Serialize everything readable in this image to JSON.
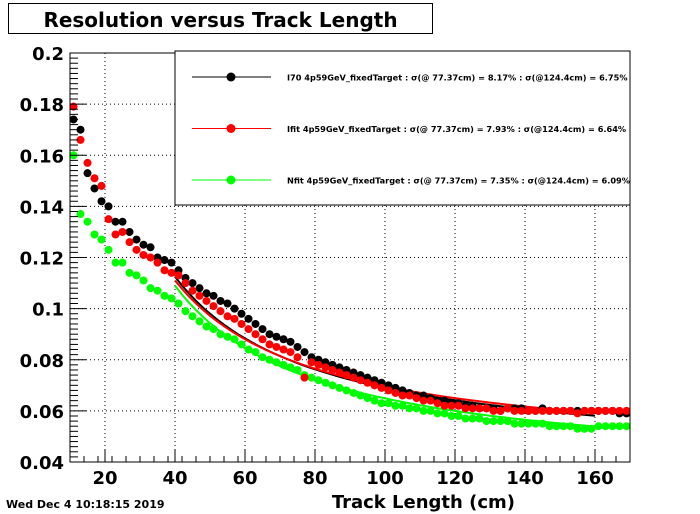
{
  "window_title": "Resolution versus Track Length",
  "datestamp": "Wed Dec  4 10:18:15 2019",
  "chart_data": {
    "type": "scatter",
    "title": "Resolution versus Track Length",
    "xlabel": "Track Length (cm)",
    "ylabel": "",
    "xlim": [
      10,
      170
    ],
    "ylim": [
      0.04,
      0.2
    ],
    "x_ticks": [
      "20",
      "40",
      "60",
      "80",
      "100",
      "120",
      "140",
      "160"
    ],
    "y_ticks": [
      "0.04",
      "0.06",
      "0.08",
      "0.1",
      "0.12",
      "0.14",
      "0.16",
      "0.18",
      "0.2"
    ],
    "grid": true,
    "legend_position": "top-right",
    "series": [
      {
        "name": "I70  4p59GeV_fixedTarget : σ(@ 77.37cm) =  8.17% : σ(@124.4cm) =  6.75%",
        "color": "#000000",
        "x": [
          11,
          13,
          15,
          17,
          19,
          21,
          23,
          25,
          27,
          29,
          31,
          33,
          35,
          37,
          39,
          41,
          43,
          45,
          47,
          49,
          51,
          53,
          55,
          57,
          59,
          61,
          63,
          65,
          67,
          69,
          71,
          73,
          75,
          77,
          79,
          81,
          83,
          85,
          87,
          89,
          91,
          93,
          95,
          97,
          99,
          101,
          103,
          105,
          107,
          109,
          111,
          113,
          115,
          117,
          119,
          121,
          123,
          125,
          127,
          129,
          131,
          133,
          135,
          137,
          139,
          141,
          143,
          145,
          147,
          149,
          151,
          153,
          155,
          157,
          159,
          161,
          163,
          165,
          167,
          169
        ],
        "y": [
          0.174,
          0.17,
          0.153,
          0.147,
          0.142,
          0.14,
          0.134,
          0.134,
          0.13,
          0.127,
          0.125,
          0.124,
          0.12,
          0.119,
          0.118,
          0.115,
          0.112,
          0.11,
          0.108,
          0.106,
          0.105,
          0.103,
          0.102,
          0.1,
          0.098,
          0.096,
          0.094,
          0.092,
          0.09,
          0.089,
          0.088,
          0.087,
          0.085,
          0.083,
          0.081,
          0.08,
          0.079,
          0.078,
          0.077,
          0.076,
          0.075,
          0.074,
          0.073,
          0.072,
          0.071,
          0.07,
          0.069,
          0.068,
          0.067,
          0.066,
          0.066,
          0.065,
          0.064,
          0.064,
          0.063,
          0.063,
          0.062,
          0.062,
          0.061,
          0.061,
          0.061,
          0.06,
          0.061,
          0.061,
          0.061,
          0.06,
          0.06,
          0.061,
          0.06,
          0.06,
          0.06,
          0.06,
          0.06,
          0.06,
          0.06,
          0.06,
          0.06,
          0.06,
          0.059,
          0.059
        ]
      },
      {
        "name": "Ifit 4p59GeV_fixedTarget : σ(@ 77.37cm) =  7.93% : σ(@124.4cm) =  6.64%",
        "color": "#ff0000",
        "x": [
          11,
          13,
          15,
          17,
          19,
          21,
          23,
          25,
          27,
          29,
          31,
          33,
          35,
          37,
          39,
          41,
          43,
          45,
          47,
          49,
          51,
          53,
          55,
          57,
          59,
          61,
          63,
          65,
          67,
          69,
          71,
          73,
          75,
          77,
          79,
          81,
          83,
          85,
          87,
          89,
          91,
          93,
          95,
          97,
          99,
          101,
          103,
          105,
          107,
          109,
          111,
          113,
          115,
          117,
          119,
          121,
          123,
          125,
          127,
          129,
          131,
          133,
          135,
          137,
          139,
          141,
          143,
          145,
          147,
          149,
          151,
          153,
          155,
          157,
          159,
          161,
          163,
          165,
          167,
          169
        ],
        "y": [
          0.179,
          0.166,
          0.157,
          0.151,
          0.148,
          0.135,
          0.129,
          0.13,
          0.126,
          0.123,
          0.121,
          0.12,
          0.118,
          0.115,
          0.114,
          0.113,
          0.11,
          0.107,
          0.105,
          0.103,
          0.101,
          0.099,
          0.097,
          0.096,
          0.094,
          0.092,
          0.09,
          0.088,
          0.086,
          0.085,
          0.084,
          0.083,
          0.081,
          0.073,
          0.079,
          0.078,
          0.077,
          0.076,
          0.075,
          0.074,
          0.073,
          0.072,
          0.071,
          0.07,
          0.069,
          0.068,
          0.067,
          0.066,
          0.066,
          0.065,
          0.064,
          0.064,
          0.063,
          0.062,
          0.062,
          0.062,
          0.061,
          0.061,
          0.061,
          0.061,
          0.06,
          0.06,
          0.061,
          0.06,
          0.06,
          0.06,
          0.06,
          0.06,
          0.06,
          0.06,
          0.06,
          0.06,
          0.059,
          0.06,
          0.06,
          0.06,
          0.06,
          0.06,
          0.06,
          0.06
        ]
      },
      {
        "name": "Nfit 4p59GeV_fixedTarget : σ(@ 77.37cm) =  7.35% : σ(@124.4cm) =  6.09%",
        "color": "#00ff00",
        "x": [
          11,
          13,
          15,
          17,
          19,
          21,
          23,
          25,
          27,
          29,
          31,
          33,
          35,
          37,
          39,
          41,
          43,
          45,
          47,
          49,
          51,
          53,
          55,
          57,
          59,
          61,
          63,
          65,
          67,
          69,
          71,
          73,
          75,
          77,
          79,
          81,
          83,
          85,
          87,
          89,
          91,
          93,
          95,
          97,
          99,
          101,
          103,
          105,
          107,
          109,
          111,
          113,
          115,
          117,
          119,
          121,
          123,
          125,
          127,
          129,
          131,
          133,
          135,
          137,
          139,
          141,
          143,
          145,
          147,
          149,
          151,
          153,
          155,
          157,
          159,
          161,
          163,
          165,
          167,
          169
        ],
        "y": [
          0.16,
          0.137,
          0.134,
          0.129,
          0.127,
          0.123,
          0.118,
          0.118,
          0.114,
          0.113,
          0.111,
          0.108,
          0.107,
          0.105,
          0.104,
          0.102,
          0.099,
          0.097,
          0.095,
          0.093,
          0.092,
          0.09,
          0.089,
          0.088,
          0.086,
          0.084,
          0.083,
          0.081,
          0.08,
          0.079,
          0.078,
          0.077,
          0.076,
          0.074,
          0.073,
          0.072,
          0.071,
          0.07,
          0.069,
          0.068,
          0.067,
          0.066,
          0.065,
          0.064,
          0.063,
          0.063,
          0.062,
          0.062,
          0.061,
          0.061,
          0.06,
          0.06,
          0.059,
          0.059,
          0.058,
          0.058,
          0.057,
          0.057,
          0.057,
          0.056,
          0.056,
          0.056,
          0.056,
          0.055,
          0.055,
          0.055,
          0.055,
          0.055,
          0.054,
          0.054,
          0.054,
          0.054,
          0.053,
          0.053,
          0.053,
          0.054,
          0.054,
          0.054,
          0.054,
          0.054
        ]
      }
    ],
    "fits": [
      {
        "series": 0,
        "x": [
          40,
          160
        ],
        "a": 0.04,
        "b": 2.9,
        "color": "#000000"
      },
      {
        "series": 1,
        "x": [
          40,
          160
        ],
        "a": 0.042,
        "b": 2.76,
        "color": "#ff0000"
      },
      {
        "series": 2,
        "x": [
          40,
          160
        ],
        "a": 0.0355,
        "b": 2.94,
        "color": "#00ff00"
      }
    ]
  }
}
